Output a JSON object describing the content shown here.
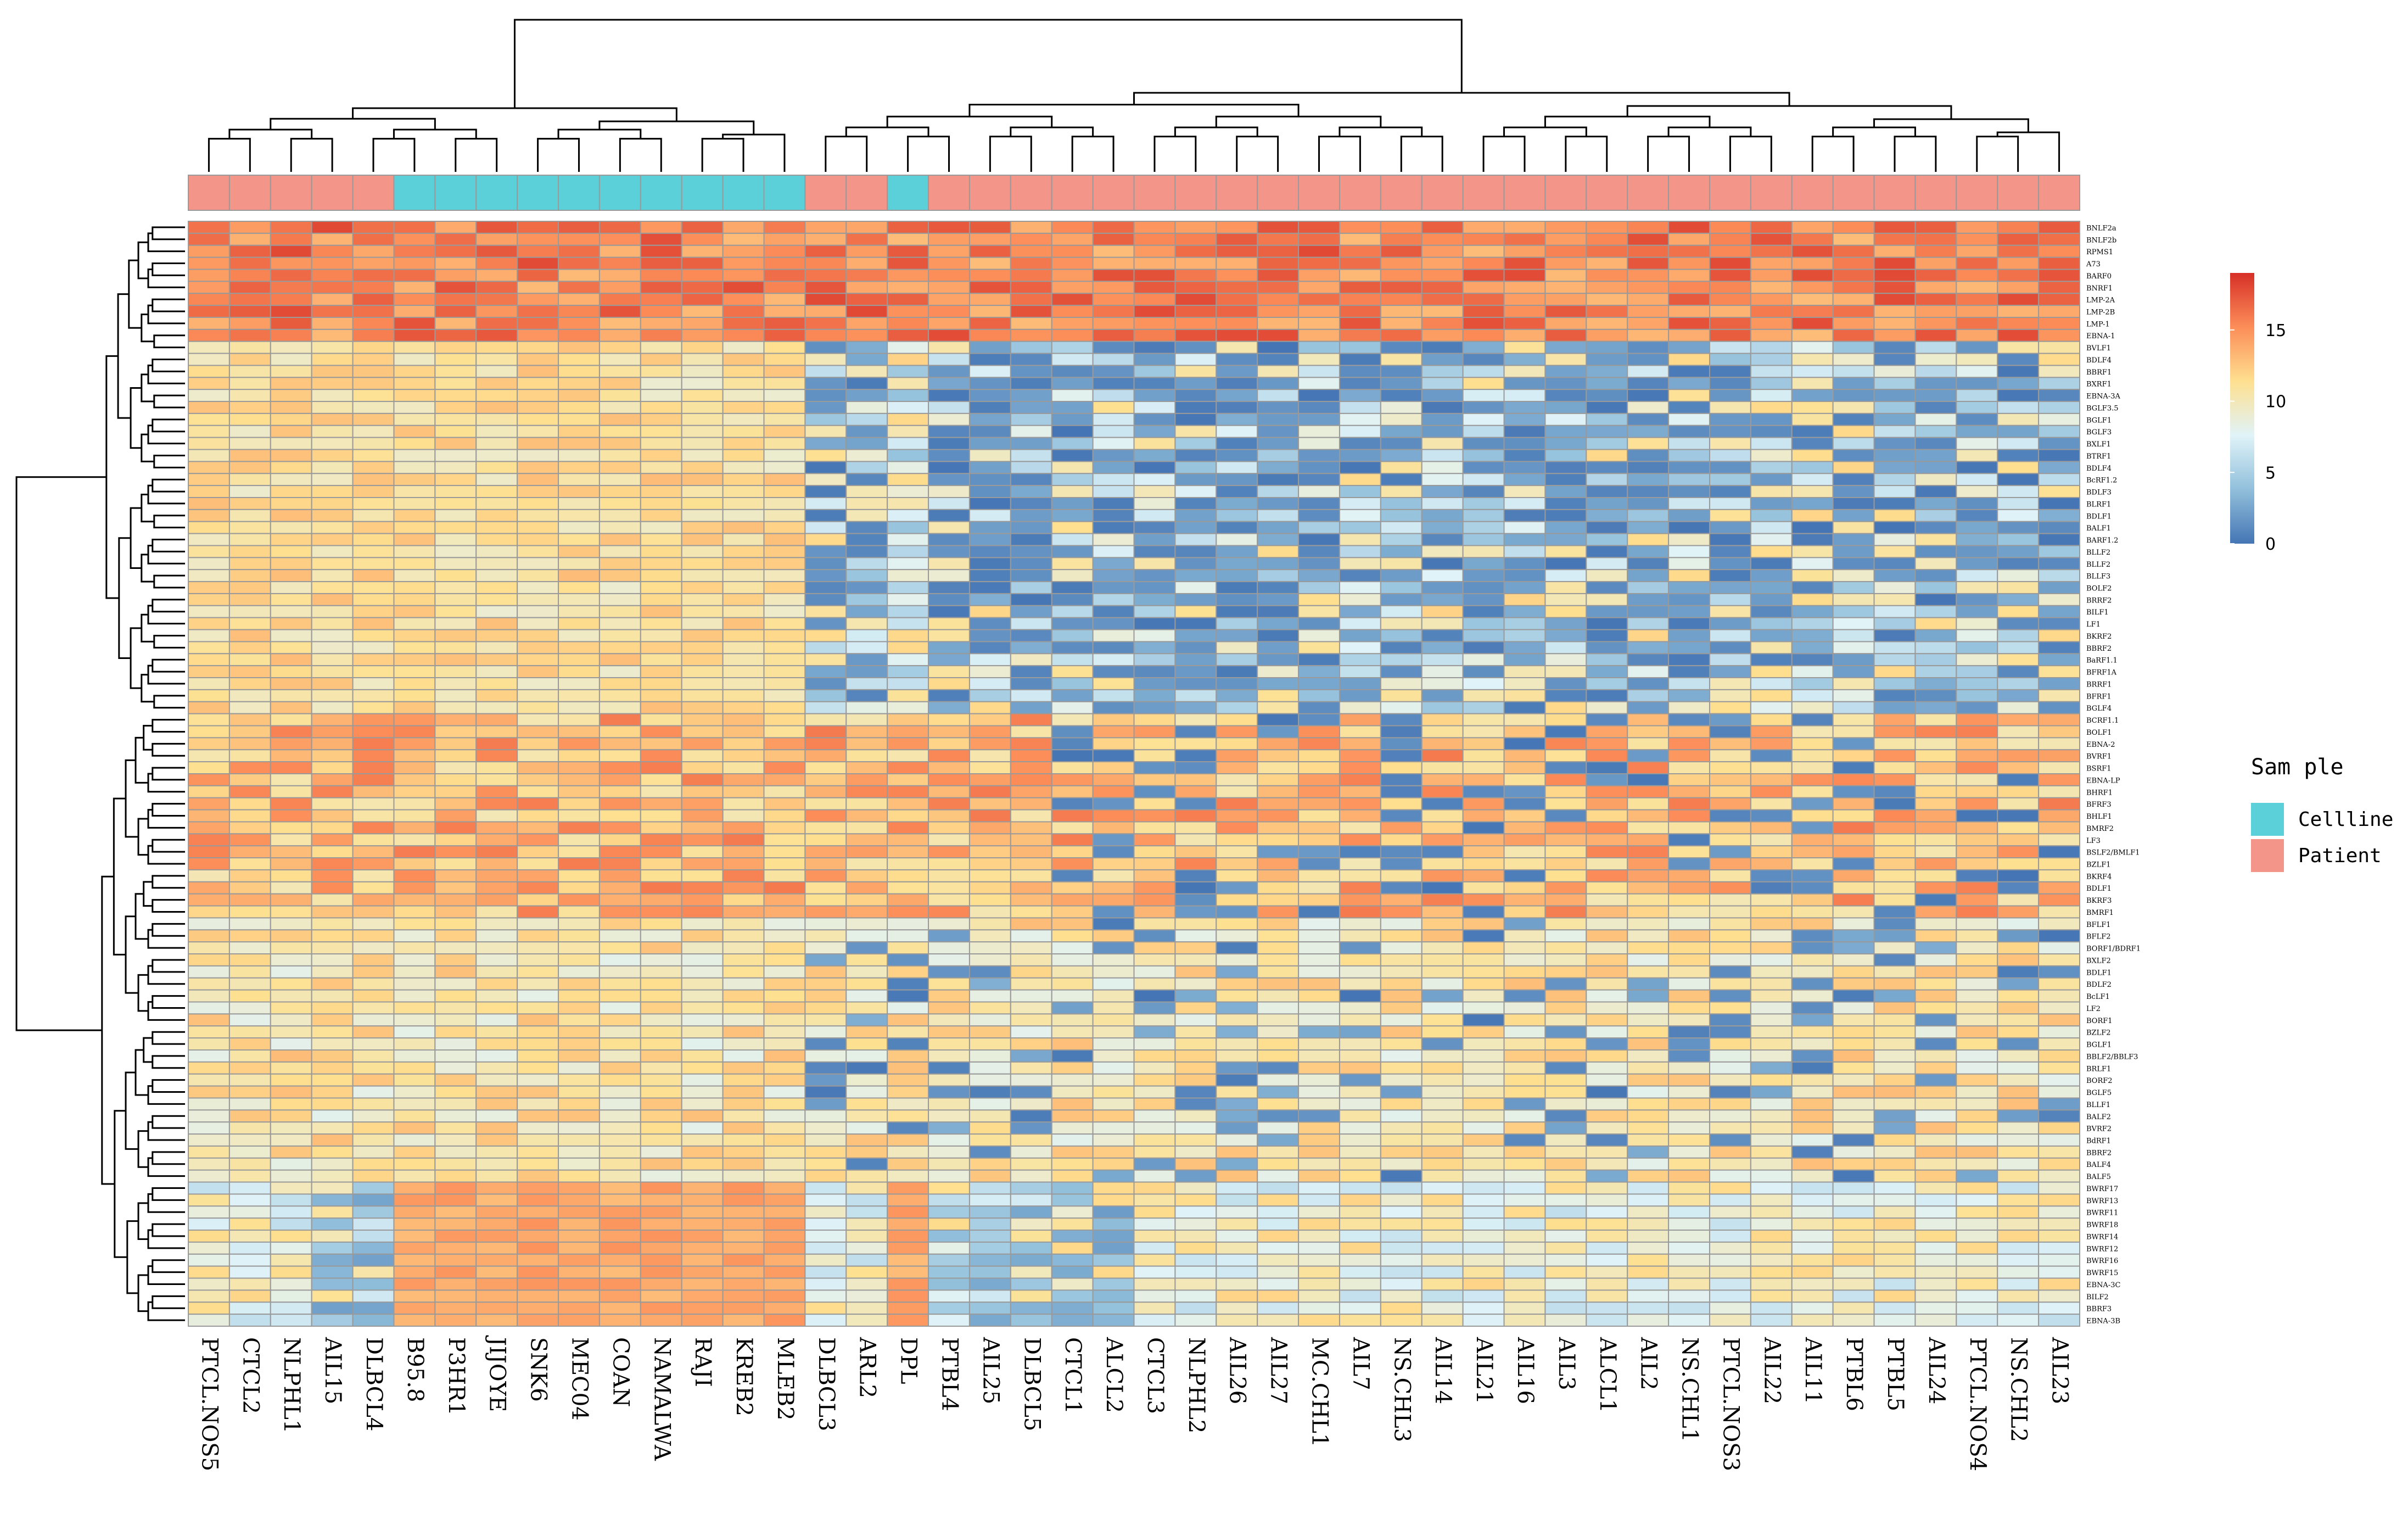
{
  "chart_data": {
    "type": "heatmap",
    "title": "",
    "columns": [
      "PTCL.NOS5",
      "CTCL2",
      "NLPHL1",
      "AIL15",
      "DLBCL4",
      "B95.8",
      "P3HR1",
      "JIJOYE",
      "SNK6",
      "MEC04",
      "COAN",
      "NAMALWA",
      "RAJI",
      "KREB2",
      "MLEB2",
      "DLBCL3",
      "ARL2",
      "DPL",
      "PTBL4",
      "AIL25",
      "DLBCL5",
      "CTCL1",
      "ALCL2",
      "CTCL3",
      "NLPHL2",
      "AIL26",
      "AIL27",
      "MC.CHL1",
      "AIL7",
      "NS.CHL3",
      "AIL14",
      "AIL21",
      "AIL16",
      "AIL3",
      "ALCL1",
      "AIL2",
      "NS.CHL1",
      "PTCL.NOS3",
      "AIL22",
      "AIL11",
      "PTBL6",
      "PTBL5",
      "AIL24",
      "PTCL.NOS4",
      "NS.CHL2",
      "AIL23"
    ],
    "sample_annotation": [
      "Patient",
      "Patient",
      "Patient",
      "Patient",
      "Patient",
      "Cellline",
      "Cellline",
      "Cellline",
      "Cellline",
      "Cellline",
      "Cellline",
      "Cellline",
      "Cellline",
      "Cellline",
      "Cellline",
      "Patient",
      "Patient",
      "Cellline",
      "Patient",
      "Patient",
      "Patient",
      "Patient",
      "Patient",
      "Patient",
      "Patient",
      "Patient",
      "Patient",
      "Patient",
      "Patient",
      "Patient",
      "Patient",
      "Patient",
      "Patient",
      "Patient",
      "Patient",
      "Patient",
      "Patient",
      "Patient",
      "Patient",
      "Patient",
      "Patient",
      "Patient",
      "Patient",
      "Patient",
      "Patient",
      "Patient"
    ],
    "rows": [
      "BNLF2a",
      "BNLF2b",
      "RPMS1",
      "A73",
      "BARF0",
      "BNRF1",
      "LMP-2A",
      "LMP-2B",
      "LMP-1",
      "EBNA-1",
      "BVLF1",
      "BDLF4",
      "BBRF1",
      "BXRF1",
      "EBNA-3A",
      "BGLF3.5",
      "BGLF1",
      "BGLF3",
      "BXLF1",
      "BTRF1",
      "BDLF4",
      "BcRF1.2",
      "BDLF3",
      "BLRF1",
      "BDLF1",
      "BALF1",
      "BARF1.2",
      "BLLF2",
      "BLLF2",
      "BLLF3",
      "BOLF2",
      "BRRF2",
      "BILF1",
      "LF1",
      "BKRF2",
      "BBRF2",
      "BaRF1.1",
      "BFRF1A",
      "BRRF1",
      "BFRF1",
      "BGLF4",
      "BCRF1.1",
      "BOLF1",
      "EBNA-2",
      "BVRF1",
      "BSRF1",
      "EBNA-LP",
      "BHRF1",
      "BFRF3",
      "BHLF1",
      "BMRF2",
      "LF3",
      "BSLF2/BMLF1",
      "BZLF1",
      "BKRF4",
      "BDLF1",
      "BKRF3",
      "BMRF1",
      "BFLF1",
      "BFLF2",
      "BORF1/BDRF1",
      "BXLF2",
      "BDLF1",
      "BDLF2",
      "BcLF1",
      "LF2",
      "BORF1",
      "BZLF2",
      "BGLF1",
      "BBLF2/BBLF3",
      "BRLF1",
      "BORF2",
      "BGLF5",
      "BLLF1",
      "BALF2",
      "BVRF2",
      "BdRF1",
      "BBRF2",
      "BALF4",
      "BALF5",
      "BWRF17",
      "BWRF13",
      "BWRF11",
      "BWRF18",
      "BWRF14",
      "BWRF12",
      "BWRF16",
      "BWRF15",
      "EBNA-3C",
      "BILF2",
      "BBRF3",
      "EBNA-3B"
    ],
    "color_scale": {
      "label_ticks": [
        "0",
        "5",
        "10",
        "15"
      ],
      "tick_values": [
        0,
        5,
        10,
        15
      ],
      "range": [
        0,
        19
      ],
      "colors": [
        "#4575b4",
        "#91bfdb",
        "#e0f3f8",
        "#fee090",
        "#fc8d59",
        "#d73027"
      ]
    },
    "legend": {
      "title": "Sam ple",
      "entries": [
        {
          "label": "Cellline",
          "color": "#5bd0d8"
        },
        {
          "label": "Patient",
          "color": "#f4958a"
        }
      ]
    },
    "cluster_groups": [
      [
        5,
        9
      ],
      [
        11,
        14
      ],
      [
        21,
        21
      ],
      [
        22,
        22
      ],
      [
        23,
        27
      ],
      [
        28,
        29
      ]
    ]
  }
}
